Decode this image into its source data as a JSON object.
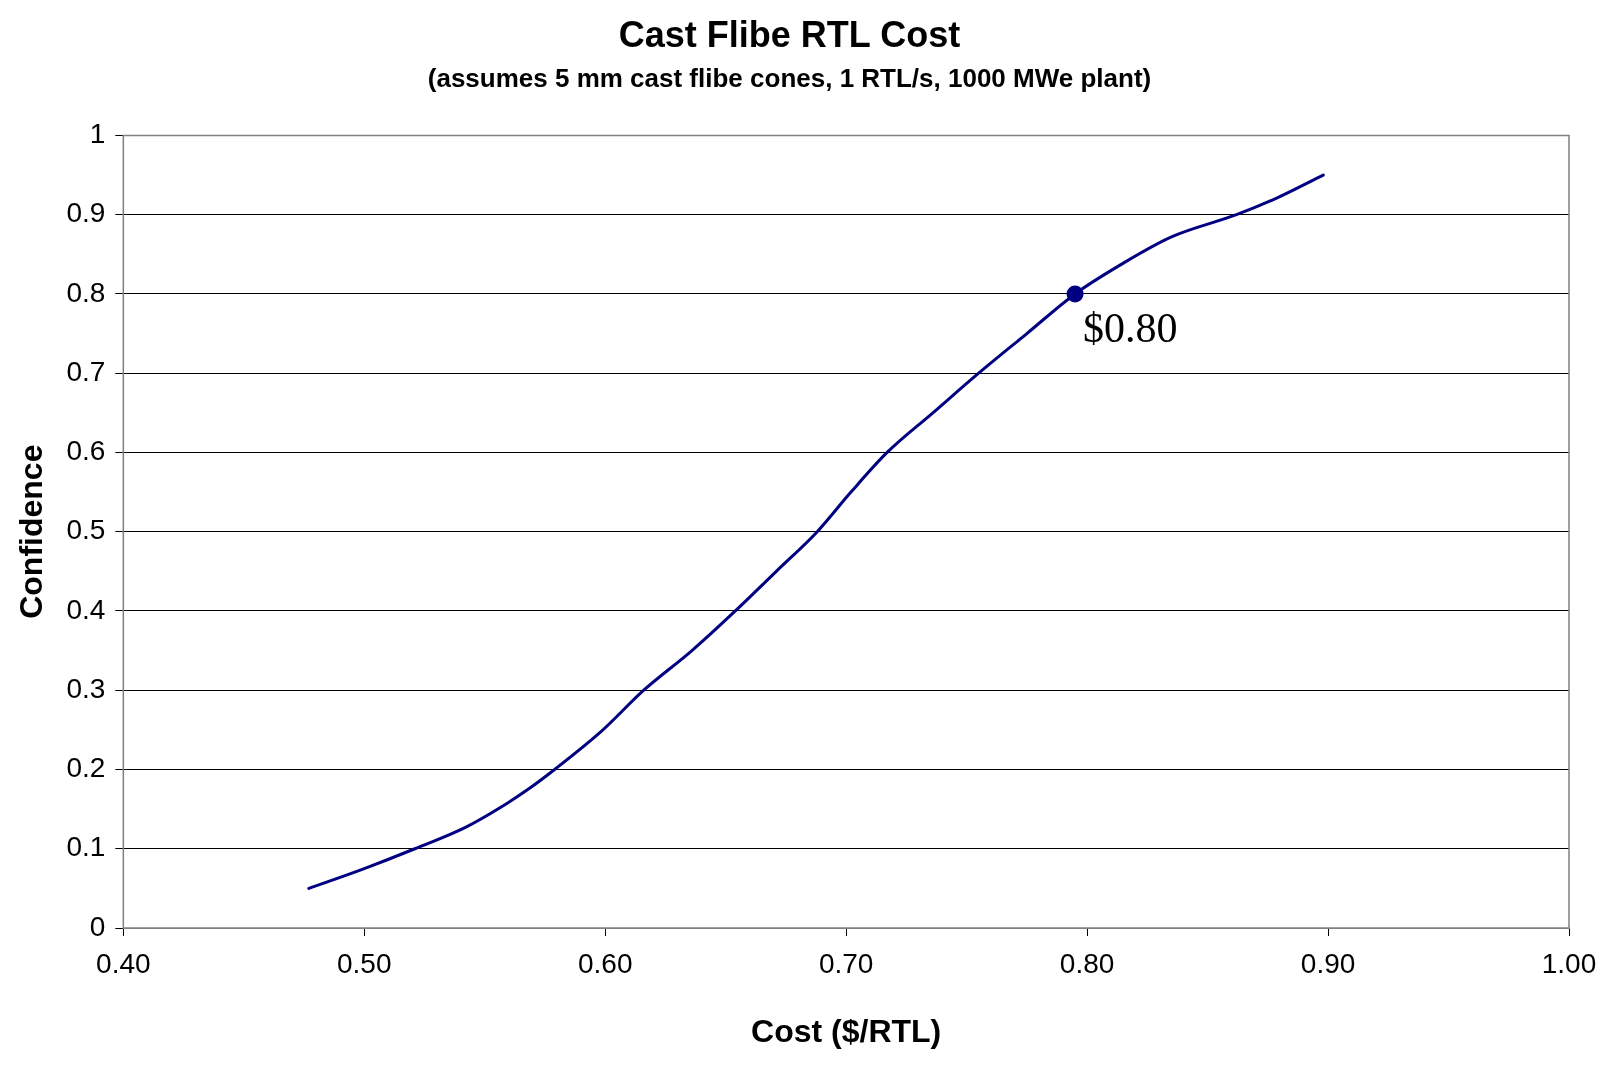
{
  "chart_data": {
    "type": "line",
    "title": "Cast Flibe RTL Cost",
    "subtitle": "(assumes 5 mm cast flibe cones, 1 RTL/s, 1000 MWe plant)",
    "xlabel": "Cost ($/RTL)",
    "ylabel": "Confidence",
    "series": [
      {
        "type": "line",
        "color": "#000080",
        "marker": "none",
        "x": [
          0.477,
          0.5,
          0.521,
          0.542,
          0.557,
          0.568,
          0.579,
          0.598,
          0.616,
          0.636,
          0.654,
          0.671,
          0.688,
          0.702,
          0.717,
          0.736,
          0.755,
          0.775,
          0.795,
          0.814,
          0.835,
          0.862,
          0.878,
          0.898
        ],
        "values": [
          0.05,
          0.075,
          0.1,
          0.127,
          0.153,
          0.175,
          0.2,
          0.247,
          0.3,
          0.35,
          0.4,
          0.45,
          0.5,
          0.55,
          0.6,
          0.65,
          0.7,
          0.75,
          0.8,
          0.837,
          0.872,
          0.9,
          0.92,
          0.95
        ]
      },
      {
        "type": "scatter",
        "color": "#000080",
        "marker": "circle",
        "x": [
          0.795
        ],
        "values": [
          0.8
        ]
      }
    ],
    "annotations": [
      {
        "text": "$0.80",
        "x": 0.795,
        "y": 0.8
      }
    ],
    "xlim": [
      0.4,
      1.0
    ],
    "xticks": [
      {
        "value": 0.4,
        "label": "0.40"
      },
      {
        "value": 0.5,
        "label": "0.50"
      },
      {
        "value": 0.6,
        "label": "0.60"
      },
      {
        "value": 0.7,
        "label": "0.70"
      },
      {
        "value": 0.8,
        "label": "0.80"
      },
      {
        "value": 0.9,
        "label": "0.90"
      },
      {
        "value": 1.0,
        "label": "1.00"
      }
    ],
    "ylim": [
      0,
      1
    ],
    "yticks": [
      0,
      0.1,
      0.2,
      0.3,
      0.4,
      0.5,
      0.6,
      0.7,
      0.8,
      0.9,
      1
    ],
    "grid": "y",
    "legend": false
  }
}
